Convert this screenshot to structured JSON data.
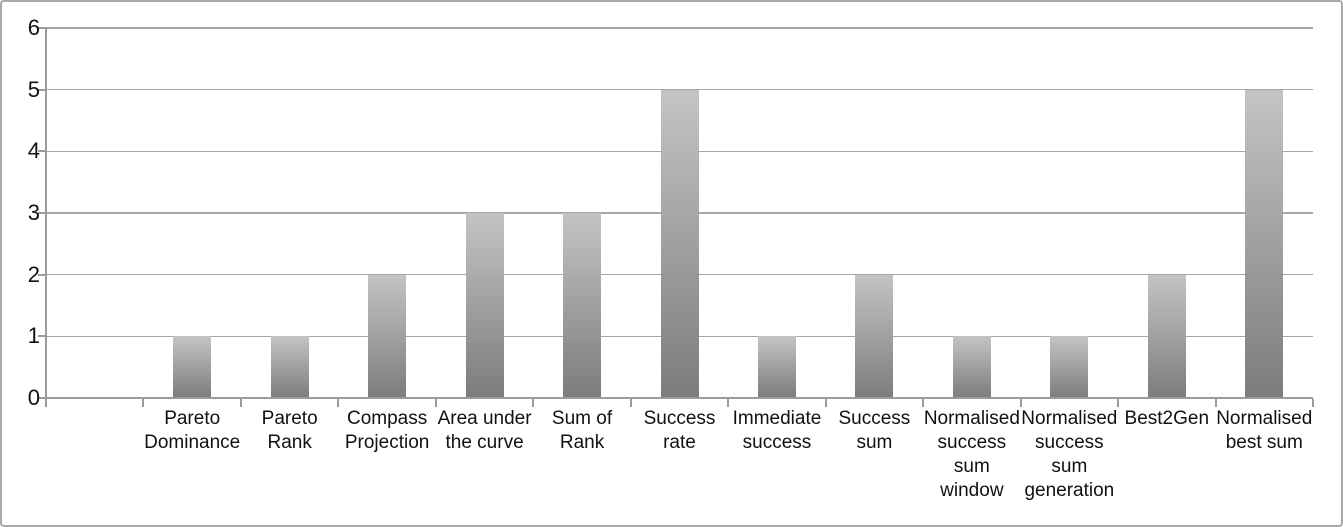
{
  "chart_data": {
    "type": "bar",
    "title": "",
    "xlabel": "",
    "ylabel": "",
    "categories": [
      "Pareto Dominance",
      "Pareto Rank",
      "Compass Projection",
      "Area under the curve",
      "Sum of Rank",
      "Success rate",
      "Immediate success",
      "Success sum",
      "Normalised success sum window",
      "Normalised success sum generation",
      "Best2Gen",
      "Normalised best sum"
    ],
    "values": [
      1,
      1,
      2,
      3,
      3,
      5,
      1,
      2,
      1,
      1,
      2,
      5
    ],
    "ylim": [
      0,
      6
    ],
    "ytick_step": 1,
    "ytick_labels": [
      "0",
      "1",
      "2",
      "3",
      "4",
      "5",
      "6"
    ],
    "grid": true,
    "legend_position": "none",
    "leading_empty_slots": 1,
    "colors": {
      "bar_gradient_top": "#c4c4c4",
      "bar_gradient_bottom": "#7c7c7c",
      "gridline": "#a6a6a6",
      "axis": "#9b9b9b",
      "text": "#111111",
      "frame_border": "#a9a9a9",
      "background": "#ffffff"
    }
  }
}
